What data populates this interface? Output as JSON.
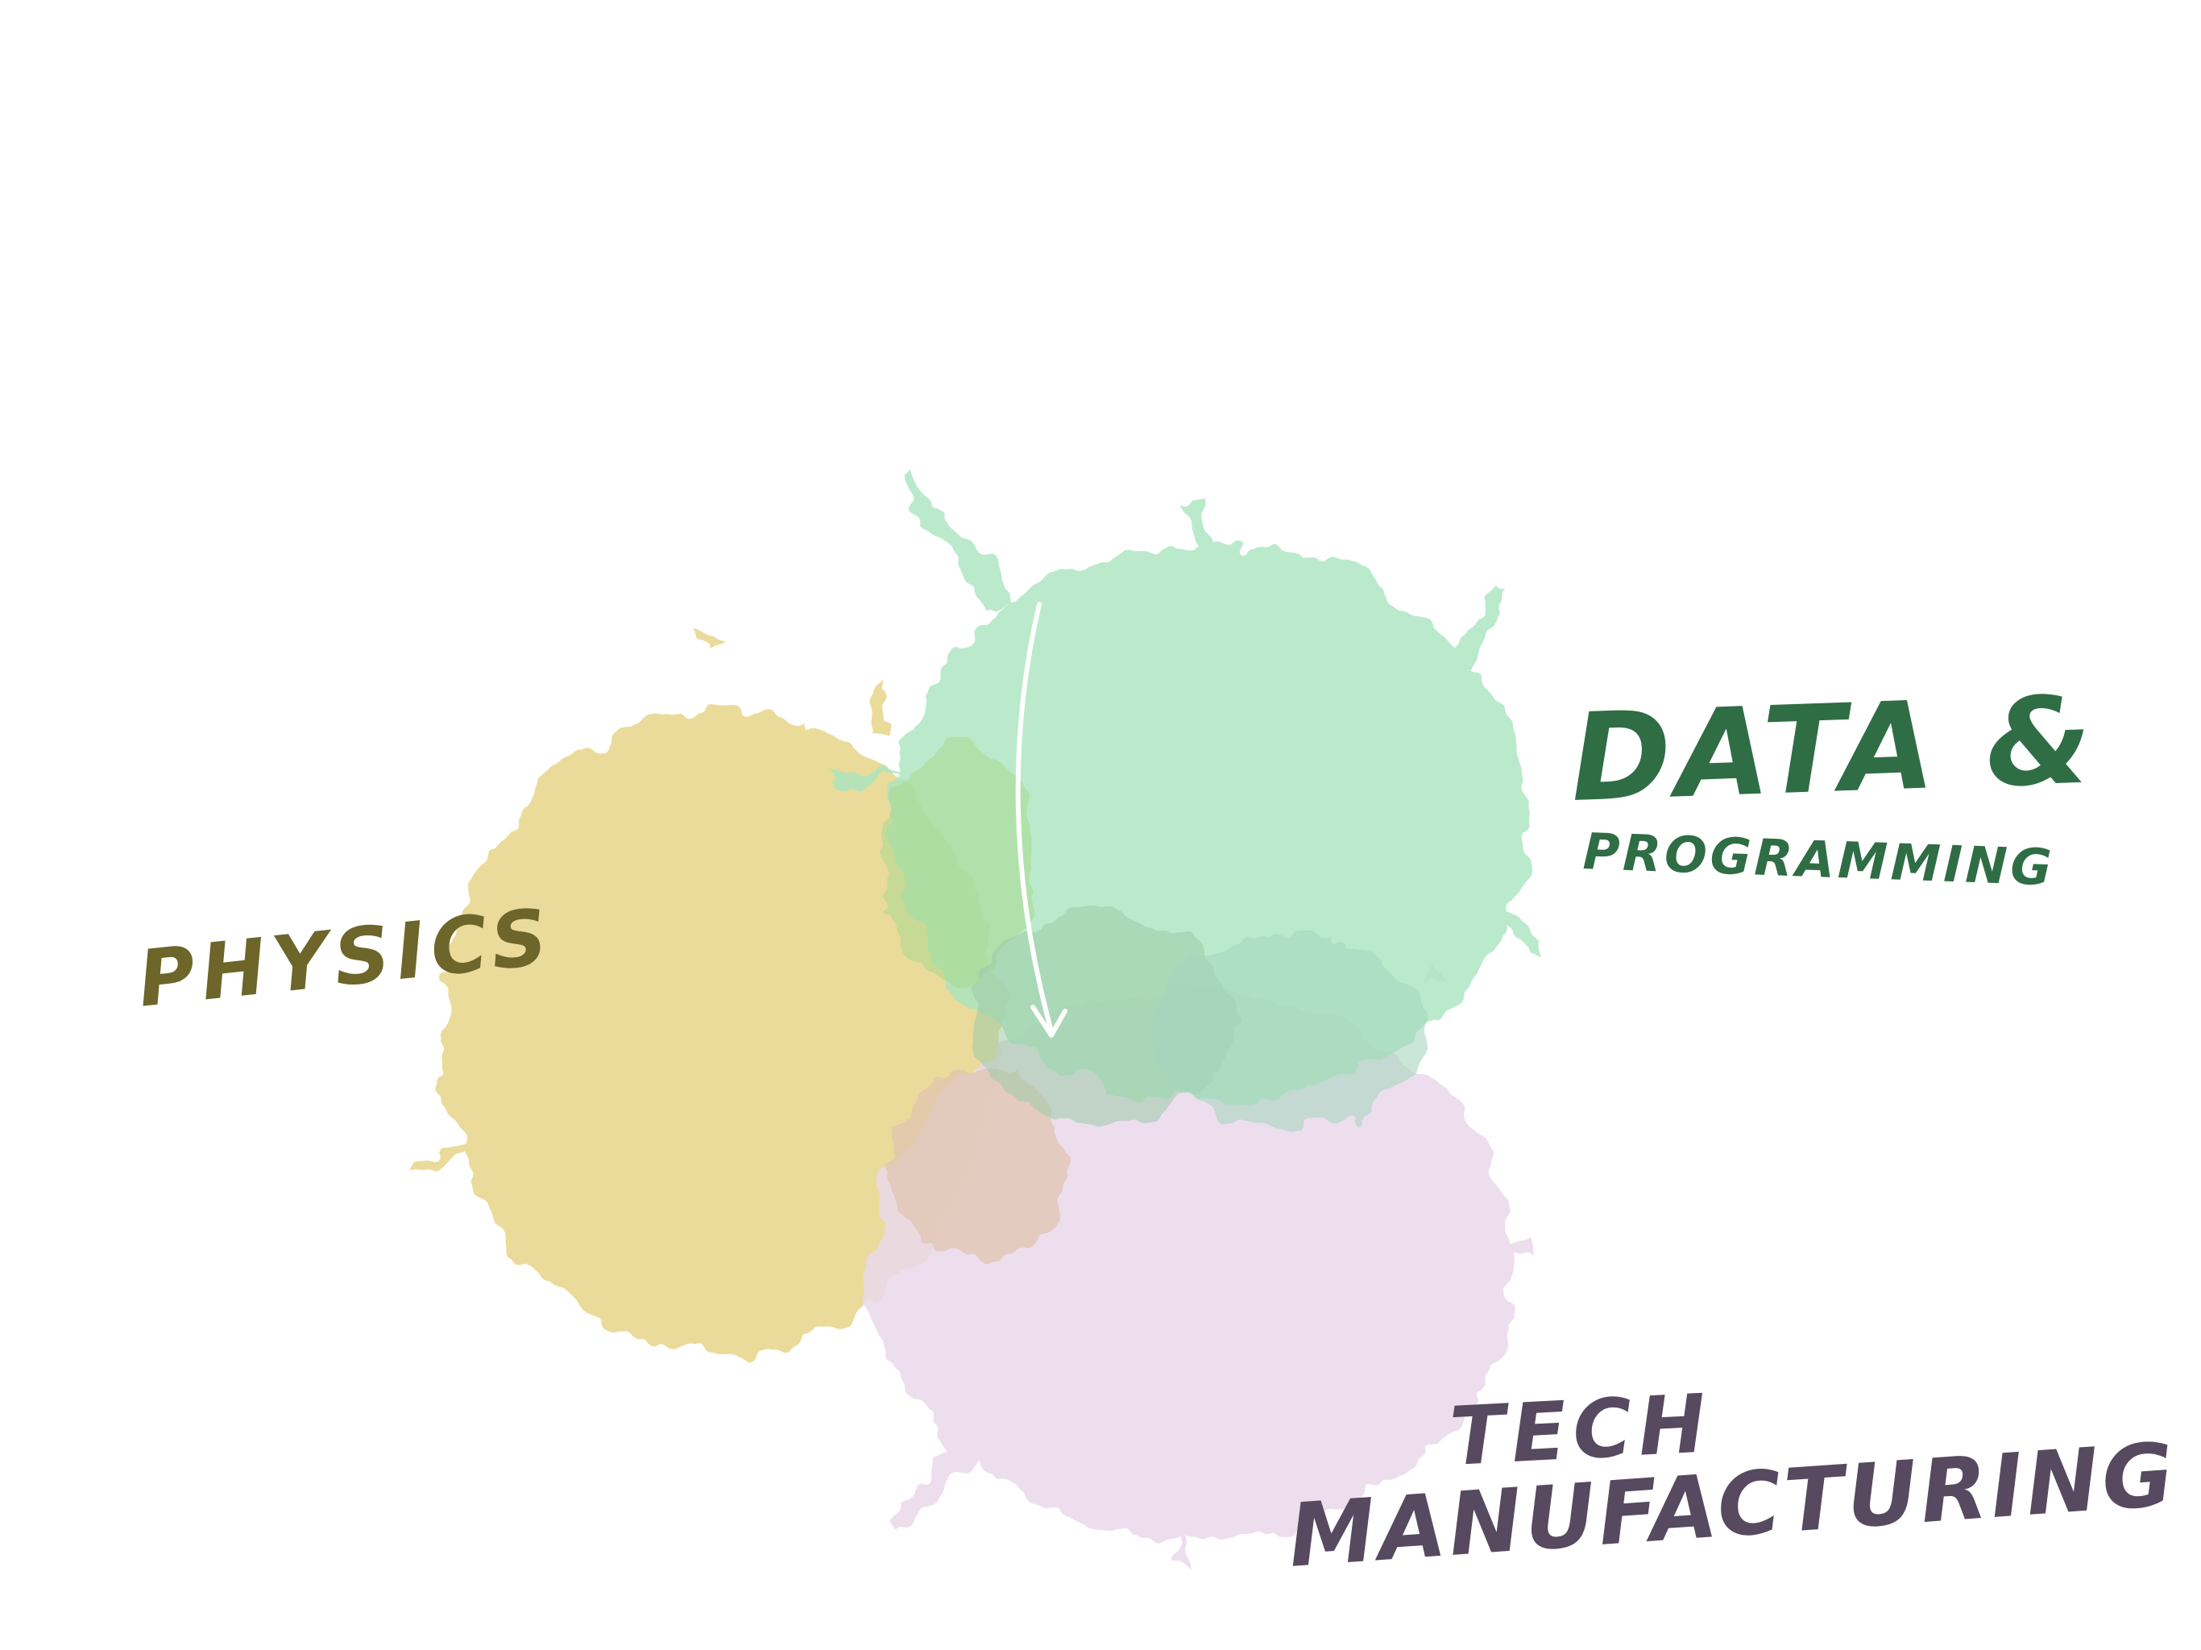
{
  "labels": {
    "physics": "PHYSICS",
    "data": "DATA &",
    "programming": "PROGRAMMING",
    "tech": "TECH",
    "manufacturing": "MANUFACTURING"
  },
  "colors": {
    "physics_blob": "#e9da96",
    "data_blob": "#b7ebca",
    "tech_blob": "#ead9ec",
    "physics_text": "#6d6529",
    "data_text": "#2f6d45",
    "tech_text": "#57495f",
    "arrow": "#ffffff"
  },
  "icons": {
    "arrow": "down-arrow-icon"
  }
}
